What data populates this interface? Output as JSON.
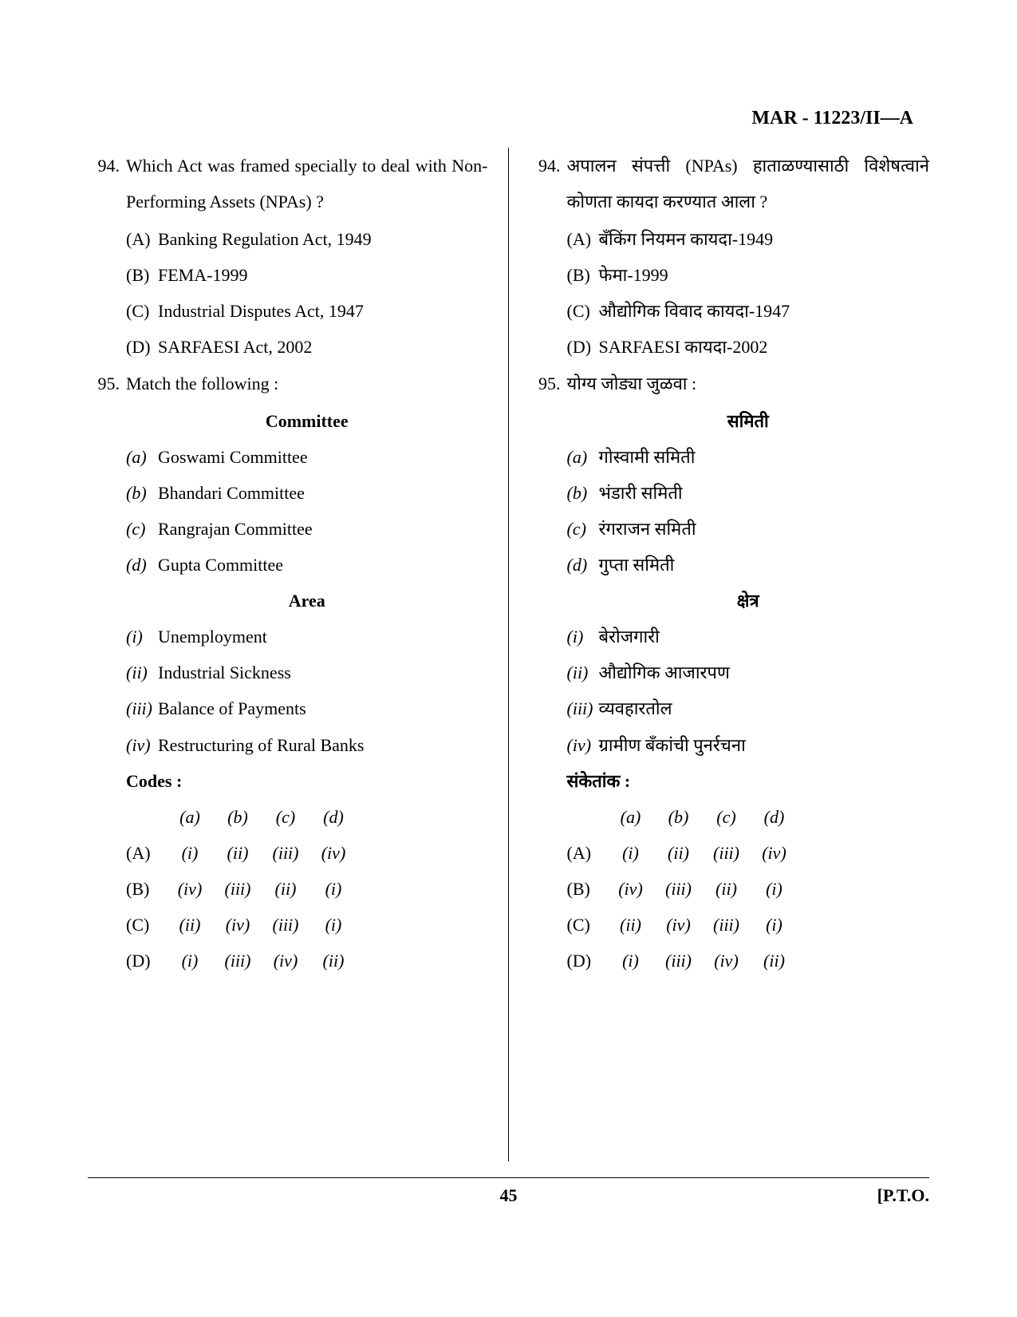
{
  "header": {
    "code": "MAR - 11223/II—A"
  },
  "left": {
    "q94": {
      "num": "94.",
      "text": "Which Act was framed specially to deal with Non-Performing Assets (NPAs) ?",
      "opts": {
        "A": "Banking Regulation Act, 1949",
        "B": "FEMA-1999",
        "C": "Industrial Disputes Act, 1947",
        "D": "SARFAESI Act, 2002"
      }
    },
    "q95": {
      "num": "95.",
      "text": "Match the following :",
      "heading1": "Committee",
      "committees": {
        "a": "Goswami Committee",
        "b": "Bhandari Committee",
        "c": "Rangrajan Committee",
        "d": "Gupta Committee"
      },
      "heading2": "Area",
      "areas": {
        "i": "Unemployment",
        "ii": "Industrial Sickness",
        "iii": "Balance of Payments",
        "iv": "Restructuring of Rural Banks"
      },
      "codes_label": "Codes :",
      "codes_header": [
        "(a)",
        "(b)",
        "(c)",
        "(d)"
      ],
      "codes": {
        "A": [
          "(i)",
          "(ii)",
          "(iii)",
          "(iv)"
        ],
        "B": [
          "(iv)",
          "(iii)",
          "(ii)",
          "(i)"
        ],
        "C": [
          "(ii)",
          "(iv)",
          "(iii)",
          "(i)"
        ],
        "D": [
          "(i)",
          "(iii)",
          "(iv)",
          "(ii)"
        ]
      }
    }
  },
  "right": {
    "q94": {
      "num": "94.",
      "text": "अपालन संपत्ती (NPAs) हाताळण्यासाठी विशेषत्वाने कोणता कायदा करण्यात आला ?",
      "opts": {
        "A": "बँकिंग नियमन कायदा-1949",
        "B": "फेमा-1999",
        "C": "औद्योगिक विवाद कायदा-1947",
        "D": "SARFAESI कायदा-2002"
      }
    },
    "q95": {
      "num": "95.",
      "text": "योग्य जोड्या जुळवा :",
      "heading1": "समिती",
      "committees": {
        "a": "गोस्वामी समिती",
        "b": "भंडारी समिती",
        "c": "रंगराजन समिती",
        "d": "गुप्ता समिती"
      },
      "heading2": "क्षेत्र",
      "areas": {
        "i": "बेरोजगारी",
        "ii": "औद्योगिक आजारपण",
        "iii": "व्यवहारतोल",
        "iv": "ग्रामीण बँकांची पुनर्रचना"
      },
      "codes_label": "संकेतांक :",
      "codes_header": [
        "(a)",
        "(b)",
        "(c)",
        "(d)"
      ],
      "codes": {
        "A": [
          "(i)",
          "(ii)",
          "(iii)",
          "(iv)"
        ],
        "B": [
          "(iv)",
          "(iii)",
          "(ii)",
          "(i)"
        ],
        "C": [
          "(ii)",
          "(iv)",
          "(iii)",
          "(i)"
        ],
        "D": [
          "(i)",
          "(iii)",
          "(iv)",
          "(ii)"
        ]
      }
    }
  },
  "labels": {
    "A": "(A)",
    "B": "(B)",
    "C": "(C)",
    "D": "(D)",
    "a": "(a)",
    "b": "(b)",
    "c": "(c)",
    "d": "(d)",
    "i": "(i)",
    "ii": "(ii)",
    "iii": "(iii)",
    "iv": "(iv)"
  },
  "footer": {
    "page": "45",
    "pto": "[P.T.O."
  }
}
